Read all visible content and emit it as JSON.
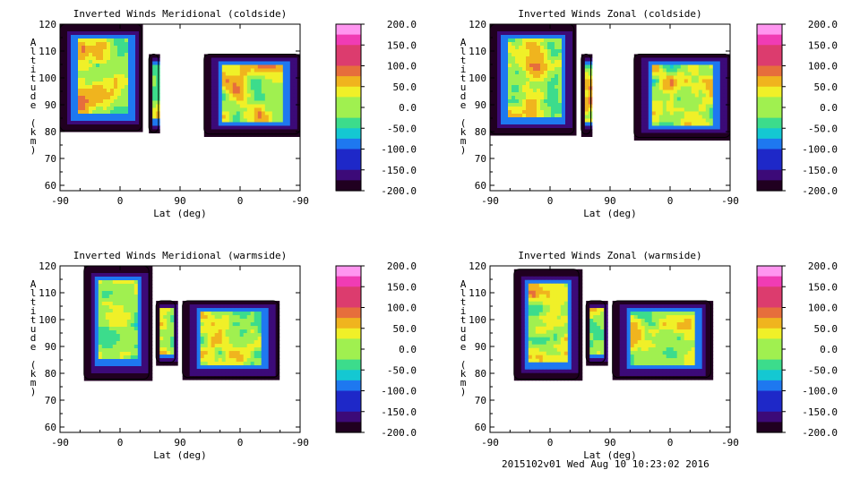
{
  "chart_data": [
    {
      "type": "heatmap",
      "title": "Inverted Winds Meridional (coldside)",
      "xlabel": "Lat (deg)",
      "ylabel": "Altitude (km)",
      "x_ticks": [
        "-90",
        "0",
        "90",
        "0",
        "-90"
      ],
      "y_ticks": [
        "60",
        "70",
        "80",
        "90",
        "100",
        "110",
        "120"
      ],
      "ylim": [
        58,
        120
      ],
      "colorbar_ticks": [
        "200.0",
        "150.0",
        "100.0",
        "50.0",
        "0.0",
        "-50.0",
        "-100.0",
        "-150.0",
        "-200.0"
      ],
      "colorbar_range": [
        -200,
        200
      ]
    },
    {
      "type": "heatmap",
      "title": "Inverted Winds Zonal (coldside)",
      "xlabel": "Lat (deg)",
      "ylabel": "Altitude (km)",
      "x_ticks": [
        "-90",
        "0",
        "90",
        "0",
        "-90"
      ],
      "y_ticks": [
        "60",
        "70",
        "80",
        "90",
        "100",
        "110",
        "120"
      ],
      "ylim": [
        58,
        120
      ],
      "colorbar_ticks": [
        "200.0",
        "150.0",
        "100.0",
        "50.0",
        "0.0",
        "-50.0",
        "-100.0",
        "-150.0",
        "-200.0"
      ],
      "colorbar_range": [
        -200,
        200
      ]
    },
    {
      "type": "heatmap",
      "title": "Inverted Winds Meridional (warmside)",
      "xlabel": "Lat (deg)",
      "ylabel": "Altitude (km)",
      "x_ticks": [
        "-90",
        "0",
        "90",
        "0",
        "-90"
      ],
      "y_ticks": [
        "60",
        "70",
        "80",
        "90",
        "100",
        "110",
        "120"
      ],
      "ylim": [
        58,
        120
      ],
      "colorbar_ticks": [
        "200.0",
        "150.0",
        "100.0",
        "50.0",
        "0.0",
        "-50.0",
        "-100.0",
        "-150.0",
        "-200.0"
      ],
      "colorbar_range": [
        -200,
        200
      ]
    },
    {
      "type": "heatmap",
      "title": "Inverted Winds Zonal (warmside)",
      "xlabel": "Lat (deg)",
      "ylabel": "Altitude (km)",
      "x_ticks": [
        "-90",
        "0",
        "90",
        "0",
        "-90"
      ],
      "y_ticks": [
        "60",
        "70",
        "80",
        "90",
        "100",
        "110",
        "120"
      ],
      "ylim": [
        58,
        120
      ],
      "colorbar_ticks": [
        "200.0",
        "150.0",
        "100.0",
        "50.0",
        "0.0",
        "-50.0",
        "-100.0",
        "-150.0",
        "-200.0"
      ],
      "colorbar_range": [
        -200,
        200
      ]
    }
  ],
  "colormap": [
    "#200020",
    "#3c0a78",
    "#1e28c8",
    "#1e78f0",
    "#14c8d2",
    "#3cdc8c",
    "#a0f050",
    "#f0f028",
    "#f0b41e",
    "#e66e3c",
    "#dc3c6e",
    "#f03cb4",
    "#ff96f0"
  ],
  "footer": "2015102v01 Wed Aug 10 10:23:02 2016"
}
